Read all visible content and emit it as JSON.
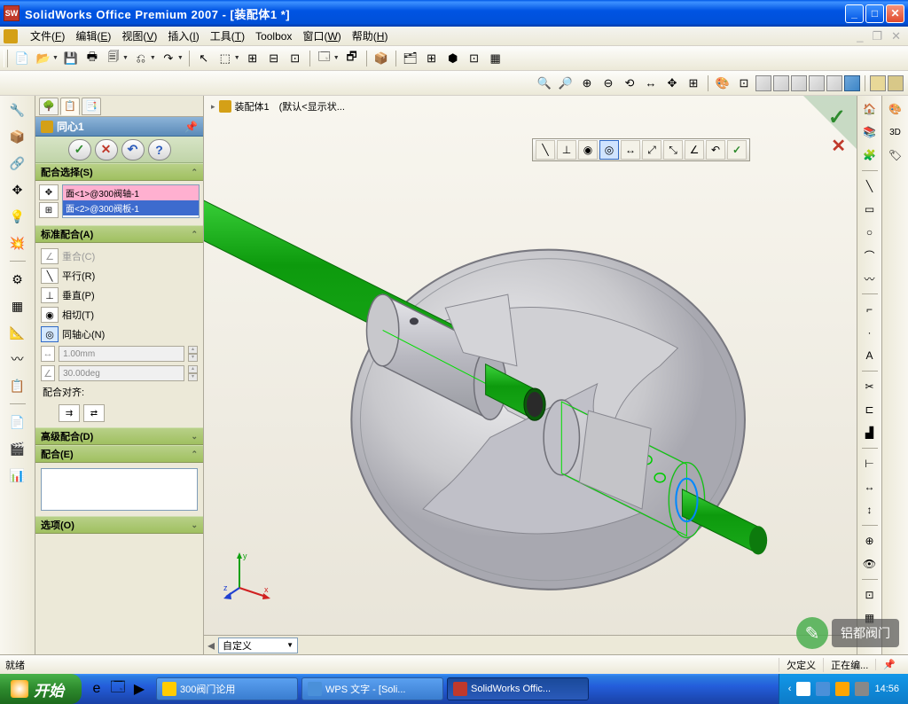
{
  "titlebar": {
    "app_icon_text": "SW",
    "title": "SolidWorks Office Premium 2007 - [装配体1 *]"
  },
  "menubar": {
    "items": [
      {
        "label": "文件",
        "accel": "F"
      },
      {
        "label": "编辑",
        "accel": "E"
      },
      {
        "label": "视图",
        "accel": "V"
      },
      {
        "label": "插入",
        "accel": "I"
      },
      {
        "label": "工具",
        "accel": "T"
      },
      {
        "label": "Toolbox",
        "accel": ""
      },
      {
        "label": "窗口",
        "accel": "W"
      },
      {
        "label": "帮助",
        "accel": "H"
      }
    ]
  },
  "std_toolbar": {
    "icons": [
      "📄",
      "📂",
      "💾",
      "🖶",
      "🗐",
      "⎌",
      "↷",
      "│",
      "↖",
      "⬚",
      "⊞",
      "⊟",
      "⊡",
      "│",
      "🗔",
      "🗗",
      "│",
      "📦",
      "│",
      "🗂",
      "⊞",
      "⬢",
      "⊡",
      "▦"
    ]
  },
  "view_toolbar": {
    "icons": [
      "🔍",
      "🔎",
      "⊕",
      "⊖",
      "⟲",
      "↔",
      "✥",
      "⊞",
      "│",
      "🎨",
      "⊡"
    ]
  },
  "fm_tabs": [
    "📁",
    "📋",
    "📑"
  ],
  "pm": {
    "title": "同心1",
    "sections": {
      "selection": {
        "header": "配合选择(S)",
        "items": [
          {
            "text": "面<1>@300阀轴-1",
            "cls": "pink"
          },
          {
            "text": "面<2>@300阀板-1",
            "cls": "blue"
          }
        ]
      },
      "std_mates": {
        "header": "标准配合(A)",
        "rows": [
          {
            "ico": "∠",
            "label": "重合(C)",
            "disabled": true
          },
          {
            "ico": "╲",
            "label": "平行(R)"
          },
          {
            "ico": "⊥",
            "label": "垂直(P)"
          },
          {
            "ico": "◉",
            "label": "相切(T)"
          },
          {
            "ico": "◎",
            "label": "同轴心(N)",
            "selected": true
          }
        ],
        "dist_value": "1.00mm",
        "angle_value": "30.00deg",
        "align_label": "配合对齐:"
      },
      "adv": {
        "header": "高级配合(D)"
      },
      "mates_list": {
        "header": "配合(E)"
      },
      "options": {
        "header": "选项(O)"
      }
    }
  },
  "viewport": {
    "breadcrumb": "装配体1　(默认<显示状...",
    "ctx_icons": [
      "╲",
      "⊥",
      "◉",
      "◎",
      "↔",
      "⤢",
      "⤡",
      "∠",
      "↶",
      "✓"
    ],
    "config_label": "自定义",
    "colors": {
      "shaft_green": "#1aaa1a",
      "shaft_green_dark": "#0d7a0d",
      "metal_light": "#d8d8dc",
      "metal_mid": "#b0b0b8",
      "metal_dark": "#888894",
      "highlight_green": "#00cc00"
    }
  },
  "statusbar": {
    "left": "就绪",
    "cells": [
      "欠定义",
      "正在编..."
    ]
  },
  "taskbar": {
    "start": "开始",
    "tasks": [
      {
        "label": "300阀门论用",
        "active": false,
        "color": "#ffcc00"
      },
      {
        "label": "WPS 文字 - [Soli...",
        "active": false,
        "color": "#4a90d9"
      },
      {
        "label": "SolidWorks Offic...",
        "active": true,
        "color": "#c0392b"
      }
    ],
    "clock": "14:56"
  },
  "watermark": {
    "text": "铝都阀门"
  }
}
